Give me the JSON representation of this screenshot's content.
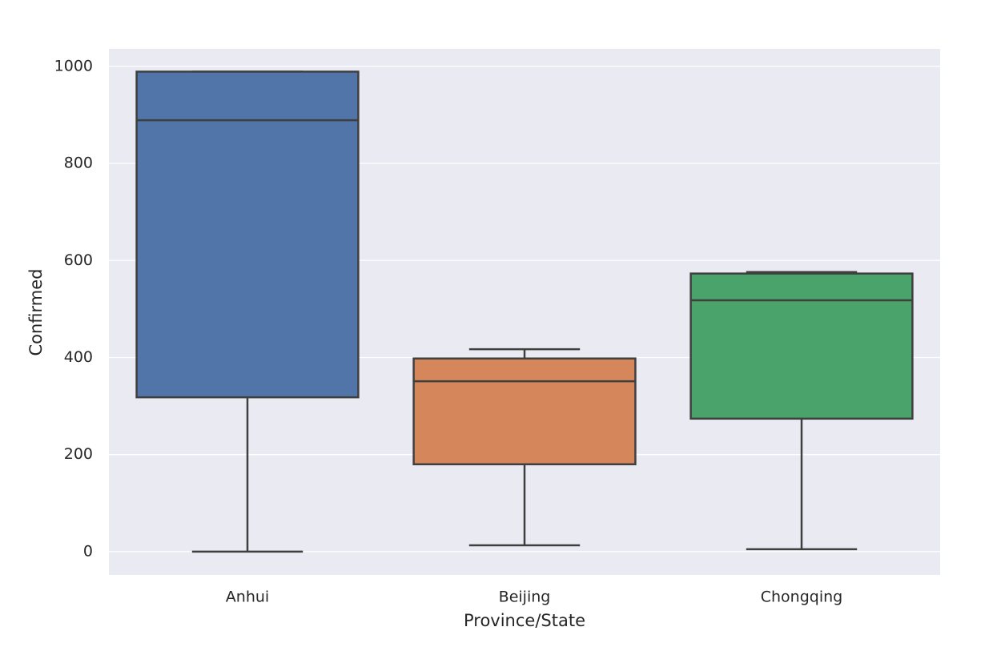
{
  "chart_data": {
    "type": "box",
    "x_label": "Province/State",
    "y_label": "Confirmed",
    "categories": [
      "Anhui",
      "Beijing",
      "Chongqing"
    ],
    "boxes": [
      {
        "min": 0,
        "q1": 318,
        "median": 889,
        "q3": 989,
        "max": 989
      },
      {
        "min": 13,
        "q1": 180,
        "median": 351,
        "q3": 398,
        "max": 417
      },
      {
        "min": 5,
        "q1": 274,
        "median": 518,
        "q3": 573,
        "max": 576
      }
    ],
    "colors": [
      "#5175a8",
      "#d5875b",
      "#4aa36a"
    ],
    "ylim": [
      -48,
      1036
    ],
    "yticks": [
      0,
      200,
      400,
      600,
      800,
      1000
    ],
    "grid": true
  }
}
